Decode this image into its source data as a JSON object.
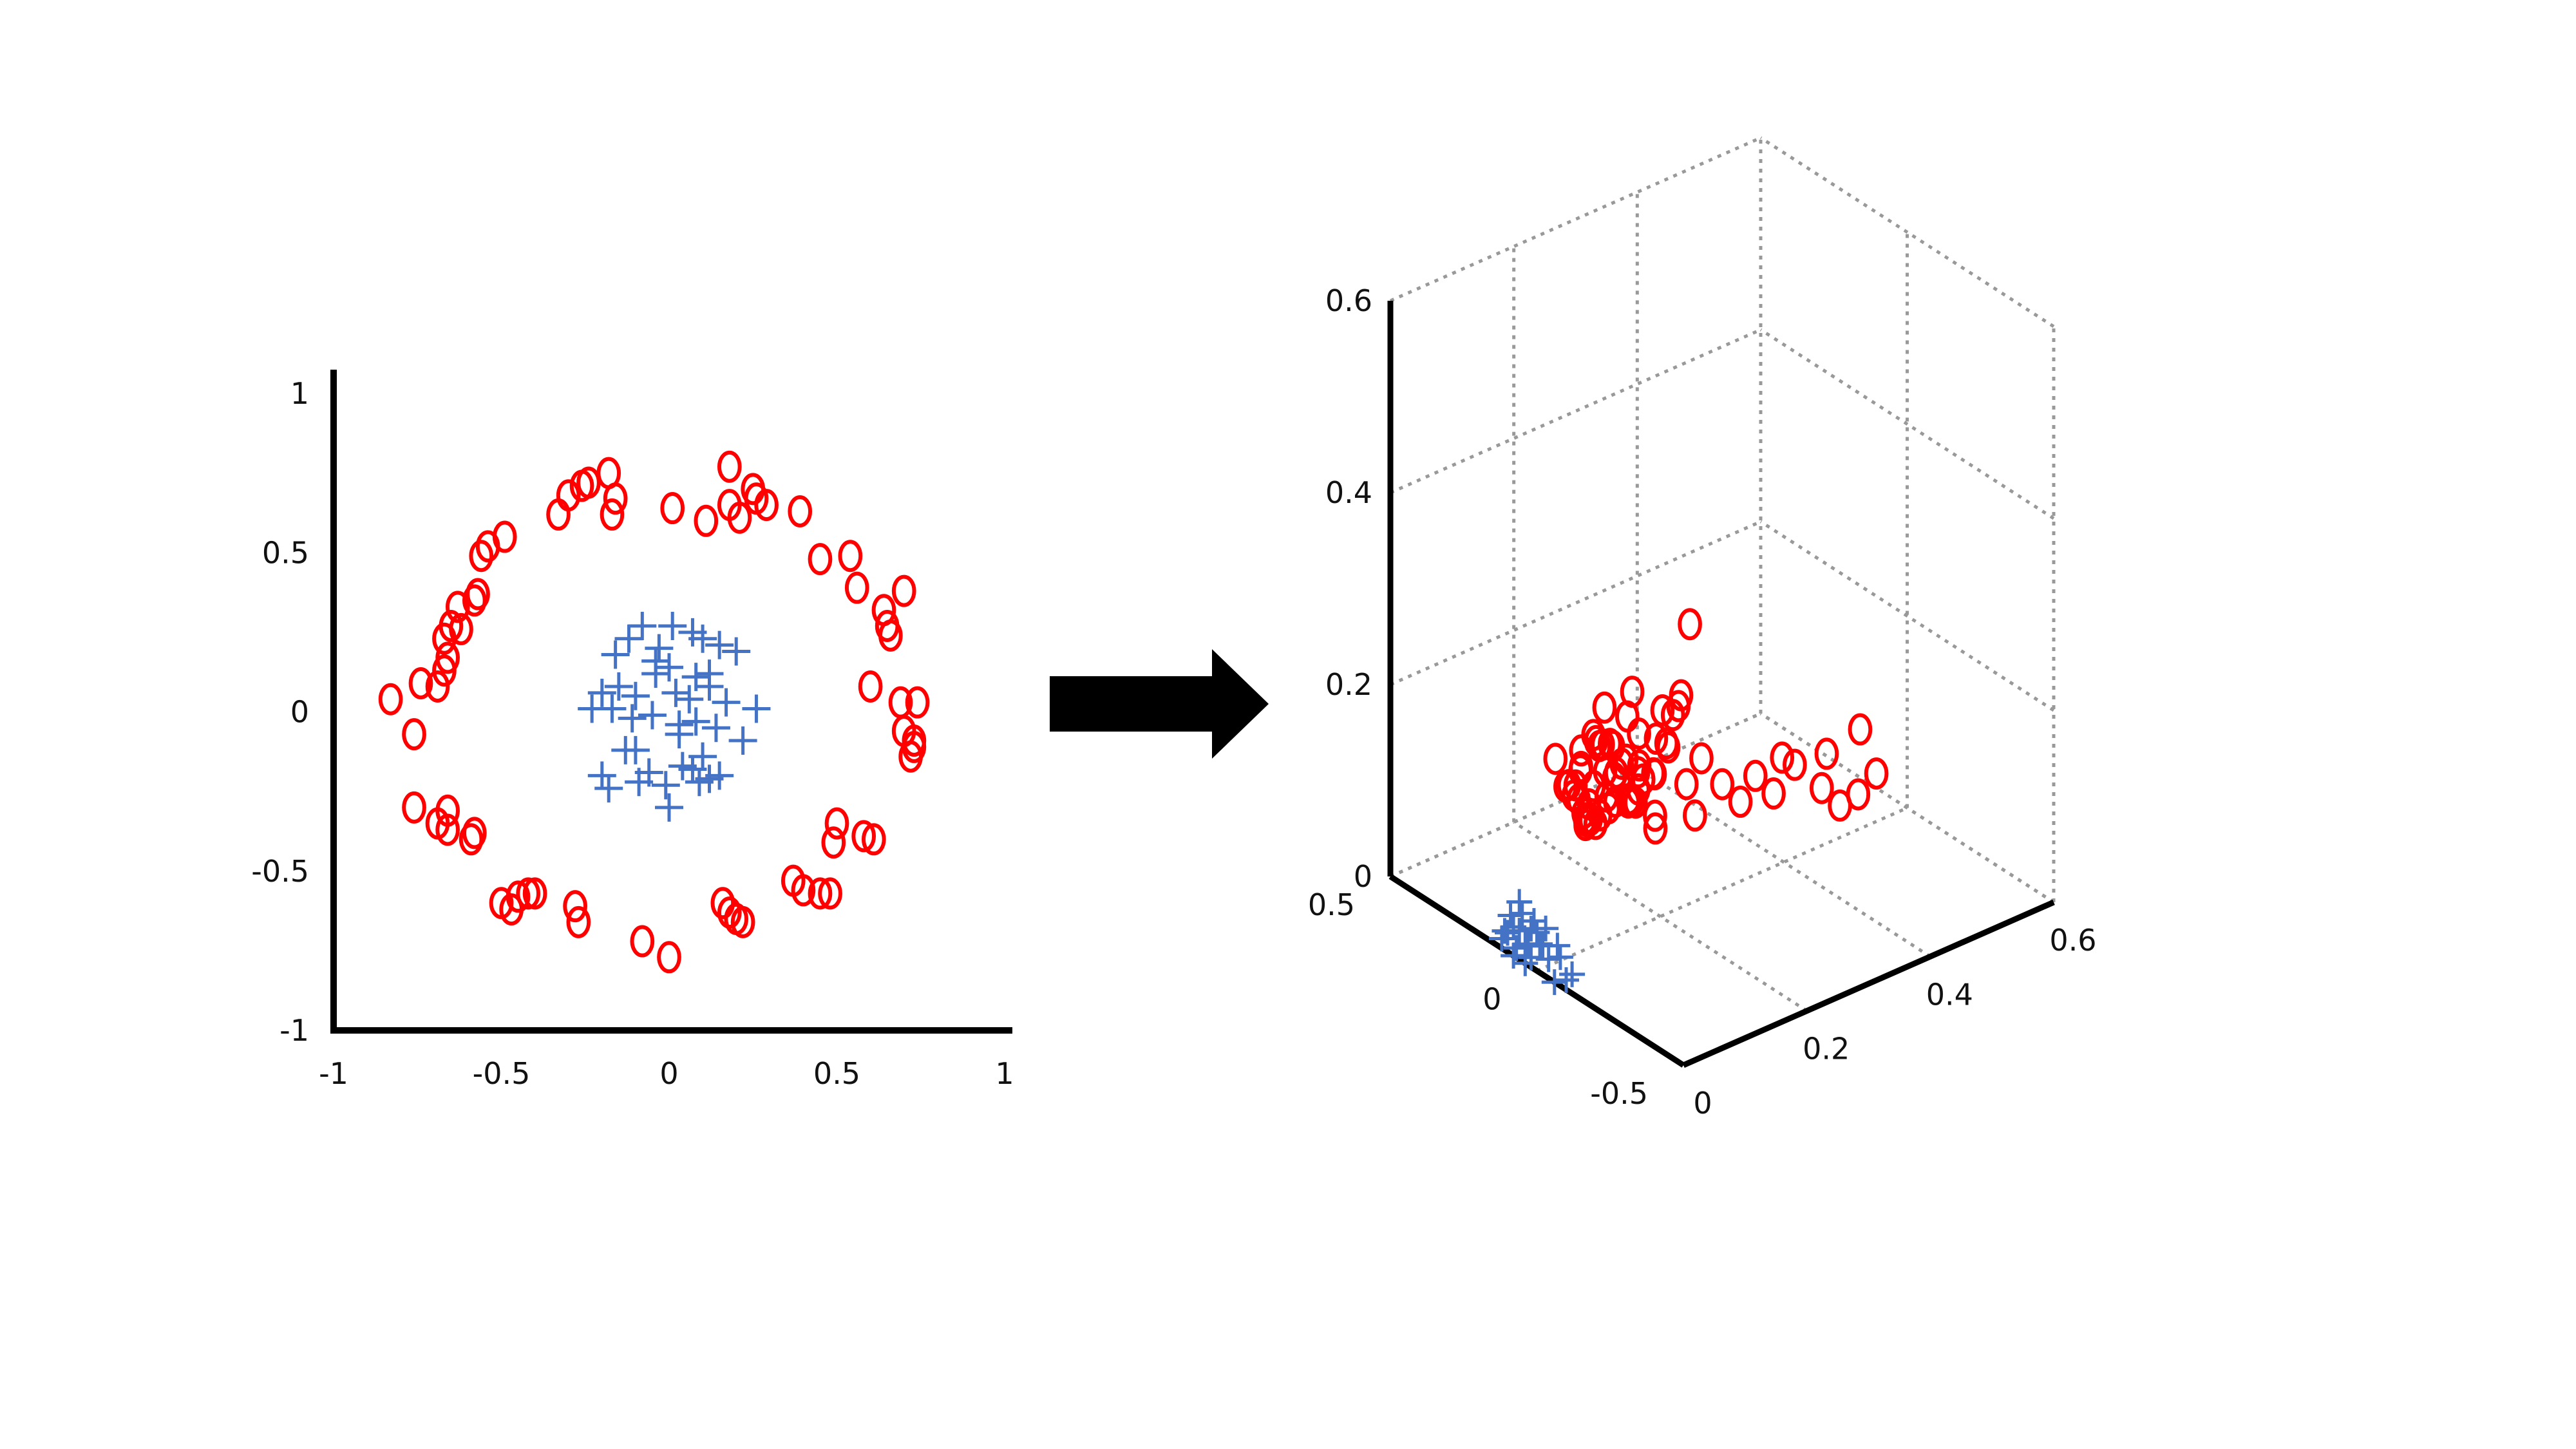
{
  "colors": {
    "circle_class": "#ff0000",
    "plus_class": "#4472c4",
    "axis": "#000000",
    "grid": "#999999",
    "arrow": "#000000"
  },
  "chart_data": [
    {
      "type": "scatter",
      "title": "",
      "xlabel": "",
      "ylabel": "",
      "xlim": [
        -1,
        1
      ],
      "ylim": [
        -1,
        1
      ],
      "grid": false,
      "x_ticks": [
        "-1",
        "-0.5",
        "0",
        "0.5",
        "1"
      ],
      "y_ticks": [
        "1",
        "0.5",
        "0",
        "-0.5",
        "-1"
      ],
      "series": [
        {
          "marker": "circle",
          "x": [
            -0.18,
            -0.24,
            -0.16,
            -0.26,
            -0.3,
            -0.33,
            -0.17,
            -0.49,
            -0.54,
            -0.56,
            -0.57,
            -0.58,
            -0.63,
            -0.62,
            -0.65,
            -0.67,
            -0.66,
            -0.67,
            -0.69,
            -0.74,
            -0.83,
            -0.76,
            -0.66,
            -0.76,
            -0.69,
            -0.66,
            -0.58,
            -0.59,
            -0.5,
            -0.47,
            -0.45,
            -0.42,
            -0.4,
            -0.28,
            -0.27,
            -0.08,
            0,
            0.16,
            0.18,
            0.2,
            0.22,
            0.37,
            0.4,
            0.45,
            0.48,
            0.5,
            0.49,
            0.58,
            0.61,
            0.7,
            0.18,
            0.25,
            0.26,
            0.29,
            0.18,
            0.21,
            0.39,
            0.01,
            0.11,
            0.45,
            0.54,
            0.56,
            0.64,
            0.65,
            0.66,
            0.6,
            0.69,
            0.74,
            0.7,
            0.73,
            0.73,
            0.72
          ],
          "y": [
            0.75,
            0.72,
            0.67,
            0.71,
            0.68,
            0.62,
            0.62,
            0.55,
            0.52,
            0.49,
            0.37,
            0.35,
            0.33,
            0.26,
            0.27,
            0.23,
            0.17,
            0.13,
            0.08,
            0.09,
            0.04,
            -0.07,
            -0.31,
            -0.3,
            -0.35,
            -0.37,
            -0.38,
            -0.4,
            -0.6,
            -0.62,
            -0.58,
            -0.57,
            -0.57,
            -0.61,
            -0.66,
            -0.72,
            -0.77,
            -0.6,
            -0.63,
            -0.65,
            -0.66,
            -0.53,
            -0.56,
            -0.57,
            -0.57,
            -0.35,
            -0.41,
            -0.39,
            -0.4,
            0.38,
            0.77,
            0.7,
            0.67,
            0.65,
            0.65,
            0.61,
            0.63,
            0.64,
            0.6,
            0.48,
            0.49,
            0.39,
            0.32,
            0.27,
            0.24,
            0.08,
            0.03,
            0.03,
            -0.06,
            -0.09,
            -0.11,
            -0.14
          ]
        },
        {
          "marker": "plus",
          "x": [
            -0.16,
            -0.12,
            -0.08,
            -0.03,
            0.01,
            0.07,
            0.1,
            0.15,
            0.2,
            -0.2,
            -0.15,
            -0.1,
            -0.04,
            0.02,
            0.06,
            0.12,
            0.17,
            0.26,
            -0.23,
            -0.17,
            -0.11,
            -0.05,
            0.03,
            0.08,
            0.14,
            0.22,
            -0.2,
            -0.13,
            -0.06,
            0.04,
            0.1,
            0.15,
            -0.18,
            -0.09,
            -0.01,
            0.07,
            0.12,
            -0.1,
            0,
            0.09,
            0.03,
            0,
            -0.04,
            0.08,
            0.12
          ],
          "y": [
            0.18,
            0.23,
            0.27,
            0.2,
            0.27,
            0.25,
            0.23,
            0.21,
            0.19,
            0.06,
            0.08,
            0.05,
            0.12,
            0.06,
            0.04,
            0.08,
            0.03,
            0.01,
            0.01,
            0.01,
            -0.02,
            -0.01,
            -0.07,
            -0.03,
            -0.05,
            -0.09,
            -0.2,
            -0.12,
            -0.19,
            -0.17,
            -0.14,
            -0.2,
            -0.24,
            -0.22,
            -0.23,
            -0.18,
            -0.21,
            -0.12,
            -0.3,
            -0.22,
            -0.04,
            0.14,
            0.16,
            0.11,
            0.12
          ]
        }
      ]
    },
    {
      "type": "scatter",
      "title": "",
      "xlabel": "",
      "ylabel": "",
      "zlabel": "",
      "projection": "3d",
      "grid": true,
      "xlim": [
        0,
        0.6
      ],
      "ylim": [
        -0.5,
        0.5
      ],
      "zlim": [
        0,
        0.6
      ],
      "x_ticks": [
        "0",
        "0.2",
        "0.4",
        "0.6"
      ],
      "y_ticks": [
        "-0.5",
        "0",
        "0.5"
      ],
      "z_ticks": [
        "0",
        "0.2",
        "0.4",
        "0.6"
      ],
      "series": [
        {
          "marker": "circle",
          "x": [
            0.02,
            0.02,
            0.03,
            0.02,
            0.04,
            0.02,
            0.03,
            0.03,
            0.04,
            0.06,
            0.08,
            0.05,
            0.06,
            0.08,
            0.09,
            0.07,
            0.09,
            0.11,
            0.1,
            0.13,
            0.16,
            0.12,
            0.14,
            0.13,
            0.15,
            0.17,
            0.15,
            0.17,
            0.19,
            0.18,
            0.2,
            0.22,
            0.21,
            0.23,
            0.25,
            0.24,
            0.22,
            0.27,
            0.26,
            0.28,
            0.3,
            0.29,
            0.31,
            0.32,
            0.33,
            0.34,
            0.35,
            0.36,
            0.38,
            0.39,
            0.37,
            0.4,
            0.42,
            0.43,
            0.45,
            0.47,
            0.44,
            0.49,
            0.51,
            0.53,
            0.55,
            0.46,
            0.5,
            0.05,
            0.08,
            0.1,
            0.12,
            0.18,
            0.2,
            0.28,
            0.3,
            0.33
          ],
          "y": [
            -0.48,
            -0.45,
            -0.42,
            -0.4,
            -0.38,
            -0.36,
            -0.34,
            -0.3,
            -0.32,
            -0.28,
            -0.26,
            -0.24,
            -0.2,
            -0.18,
            -0.16,
            -0.12,
            -0.1,
            -0.08,
            -0.06,
            -0.04,
            0,
            0.02,
            0.05,
            0.08,
            0.1,
            0.12,
            0.15,
            0.18,
            0.2,
            0.22,
            0.25,
            0.28,
            0.3,
            0.32,
            0.35,
            0.38,
            0.4,
            0.42,
            0.45,
            0.48,
            0.5,
            0.46,
            0.44,
            0.41,
            0.39,
            0.37,
            0.34,
            0.31,
            0.29,
            0.26,
            0.24,
            0.21,
            0.19,
            0.16,
            0.14,
            0.11,
            0.09,
            0.06,
            0.04,
            0.02,
            0,
            -0.02,
            -0.05,
            -0.22,
            -0.14,
            -0.02,
            0.06,
            0.13,
            0.27,
            0.33,
            0.43,
            0.47
          ],
          "z": [
            0.45,
            0.37,
            0.35,
            0.31,
            0.33,
            0.27,
            0.22,
            0.25,
            0.2,
            0.28,
            0.3,
            0.24,
            0.2,
            0.26,
            0.22,
            0.18,
            0.21,
            0.16,
            0.19,
            0.15,
            0.13,
            0.17,
            0.12,
            0.14,
            0.1,
            0.11,
            0.08,
            0.09,
            0.06,
            0.07,
            0.05,
            0.04,
            0.06,
            0.03,
            0.02,
            0.04,
            0.08,
            0.05,
            0.03,
            0.02,
            0.01,
            0.04,
            0.06,
            0.03,
            0.05,
            0.02,
            0.04,
            0.07,
            0.03,
            0.06,
            0.01,
            0.04,
            0.02,
            0.05,
            0.03,
            0.06,
            0.08,
            0.04,
            0.02,
            0.03,
            0.05,
            0.1,
            0.12,
            0.32,
            0.27,
            0.25,
            0.2,
            0.16,
            0.12,
            0.09,
            0.07,
            0.05
          ]
        },
        {
          "marker": "plus",
          "x": [
            0,
            0,
            0,
            0,
            0,
            0,
            0,
            0,
            0,
            0,
            0,
            0,
            0,
            0,
            0,
            0,
            0,
            0,
            0,
            0,
            0,
            0,
            0,
            0,
            0,
            0
          ],
          "y": [
            0.08,
            0.05,
            0.02,
            0.1,
            0.12,
            0.06,
            0.03,
            0,
            -0.02,
            0.07,
            0.09,
            0.04,
            0.01,
            -0.04,
            -0.07,
            -0.1,
            -0.12,
            0.06,
            0.02,
            -0.01,
            -0.06,
            -0.03,
            0.04,
            0.08,
            -0.08,
            0.11
          ],
          "z": [
            0.03,
            0.05,
            0.04,
            0.02,
            0.01,
            0.06,
            0.02,
            0.04,
            0.03,
            0.01,
            0.04,
            0,
            0.05,
            0.02,
            0.04,
            0.01,
            0.02,
            0.03,
            0.01,
            0.03,
            0,
            0.05,
            0.02,
            0,
            0.03,
            0.02
          ]
        }
      ]
    }
  ]
}
